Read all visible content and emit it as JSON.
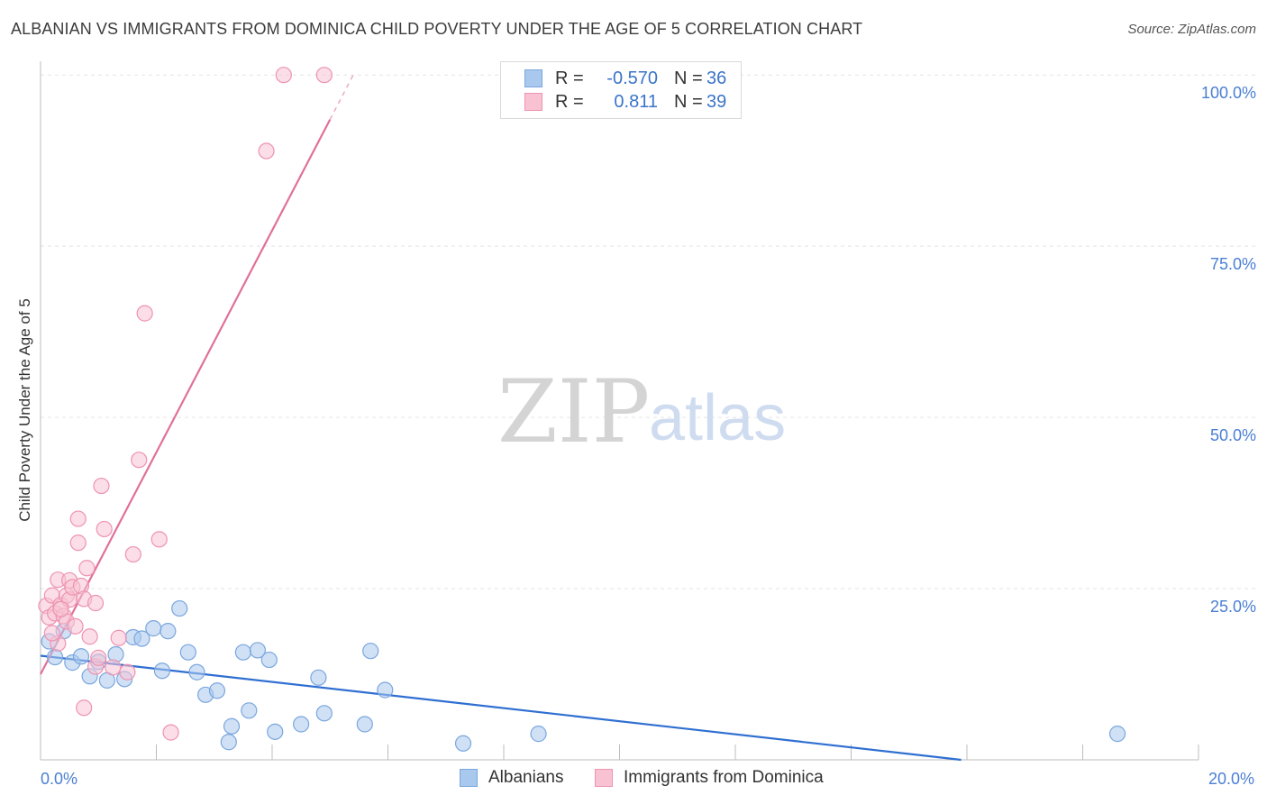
{
  "title": "ALBANIAN VS IMMIGRANTS FROM DOMINICA CHILD POVERTY UNDER THE AGE OF 5 CORRELATION CHART",
  "source": "Source: ZipAtlas.com",
  "watermark": {
    "zip": "ZIP",
    "atlas": "atlas"
  },
  "legend": {
    "rows": [
      {
        "r_label": "R =",
        "r_value": "-0.570",
        "n_label": "N =",
        "n_value": "36",
        "color": "#a9c8ee",
        "border": "#7aa6dd"
      },
      {
        "r_label": "R =",
        "r_value": "0.811",
        "n_label": "N =",
        "n_value": "39",
        "color": "#f8c2d3",
        "border": "#ee93b1"
      }
    ]
  },
  "bottom_legend": [
    {
      "label": "Albanians",
      "color": "#a9c8ee",
      "border": "#7aa6dd"
    },
    {
      "label": "Immigrants from Dominica",
      "color": "#f8c2d3",
      "border": "#ee93b1"
    }
  ],
  "chart_data": {
    "type": "scatter",
    "title": "ALBANIAN VS IMMIGRANTS FROM DOMINICA CHILD POVERTY UNDER THE AGE OF 5 CORRELATION CHART",
    "xlabel": "",
    "ylabel": "Child Poverty Under the Age of 5",
    "xlim": [
      0,
      20
    ],
    "ylim": [
      0,
      102
    ],
    "x_ticks": [
      0,
      20
    ],
    "x_tick_labels": [
      "0.0%",
      "20.0%"
    ],
    "y_ticks": [
      25,
      50,
      75,
      100
    ],
    "y_tick_labels": [
      "25.0%",
      "50.0%",
      "75.0%",
      "100.0%"
    ],
    "grid": true,
    "series": [
      {
        "name": "Albanians",
        "color": "#a9c8ee",
        "stroke": "#7aa6dd",
        "line_color": "#2f6fd1",
        "trend": {
          "x0": 0,
          "y0": 15.2,
          "x1": 15.9,
          "y1": 0
        },
        "points": [
          [
            0.25,
            15.0
          ],
          [
            0.4,
            18.8
          ],
          [
            0.55,
            14.2
          ],
          [
            0.7,
            15.1
          ],
          [
            0.85,
            12.2
          ],
          [
            1.0,
            14.3
          ],
          [
            1.15,
            11.6
          ],
          [
            1.3,
            15.4
          ],
          [
            1.45,
            11.8
          ],
          [
            1.6,
            17.9
          ],
          [
            1.75,
            17.7
          ],
          [
            1.95,
            19.2
          ],
          [
            2.1,
            13.0
          ],
          [
            2.2,
            18.8
          ],
          [
            2.4,
            22.1
          ],
          [
            2.55,
            15.7
          ],
          [
            2.7,
            12.8
          ],
          [
            2.85,
            9.5
          ],
          [
            3.05,
            10.1
          ],
          [
            3.3,
            4.9
          ],
          [
            3.25,
            2.6
          ],
          [
            3.5,
            15.7
          ],
          [
            3.6,
            7.2
          ],
          [
            3.75,
            16.0
          ],
          [
            3.95,
            14.6
          ],
          [
            4.05,
            4.1
          ],
          [
            4.5,
            5.2
          ],
          [
            4.8,
            12.0
          ],
          [
            4.9,
            6.8
          ],
          [
            5.6,
            5.2
          ],
          [
            5.7,
            15.9
          ],
          [
            5.95,
            10.2
          ],
          [
            7.3,
            2.4
          ],
          [
            8.6,
            3.8
          ],
          [
            18.6,
            3.8
          ],
          [
            0.15,
            17.3
          ]
        ]
      },
      {
        "name": "Immigrants from Dominica",
        "color": "#f8c2d3",
        "stroke": "#ee93b1",
        "line_color": "#e0709a",
        "trend": {
          "x0": 0,
          "y0": 12.5,
          "x1": 5.0,
          "y1": 93.5
        },
        "trend_dashed": {
          "x0": 5.0,
          "y0": 93.5,
          "x1": 5.4,
          "y1": 100
        },
        "points": [
          [
            0.1,
            22.5
          ],
          [
            0.15,
            20.8
          ],
          [
            0.2,
            24.0
          ],
          [
            0.25,
            21.4
          ],
          [
            0.3,
            26.3
          ],
          [
            0.35,
            22.6
          ],
          [
            0.4,
            21.0
          ],
          [
            0.45,
            20.2
          ],
          [
            0.45,
            24.0
          ],
          [
            0.5,
            23.4
          ],
          [
            0.5,
            26.2
          ],
          [
            0.55,
            25.2
          ],
          [
            0.6,
            19.5
          ],
          [
            0.65,
            31.7
          ],
          [
            0.65,
            35.2
          ],
          [
            0.7,
            25.4
          ],
          [
            0.75,
            23.5
          ],
          [
            0.75,
            7.6
          ],
          [
            0.8,
            28.0
          ],
          [
            0.85,
            18.0
          ],
          [
            0.95,
            22.9
          ],
          [
            0.95,
            13.6
          ],
          [
            1.0,
            14.9
          ],
          [
            1.05,
            40.0
          ],
          [
            1.1,
            33.7
          ],
          [
            1.25,
            13.5
          ],
          [
            1.35,
            17.8
          ],
          [
            1.5,
            12.8
          ],
          [
            1.6,
            30.0
          ],
          [
            1.7,
            43.8
          ],
          [
            1.8,
            65.2
          ],
          [
            2.05,
            32.2
          ],
          [
            2.25,
            4.0
          ],
          [
            3.9,
            88.9
          ],
          [
            4.2,
            100.0
          ],
          [
            4.9,
            100.0
          ],
          [
            0.3,
            17.0
          ],
          [
            0.2,
            18.5
          ],
          [
            0.35,
            22.0
          ]
        ]
      }
    ]
  }
}
